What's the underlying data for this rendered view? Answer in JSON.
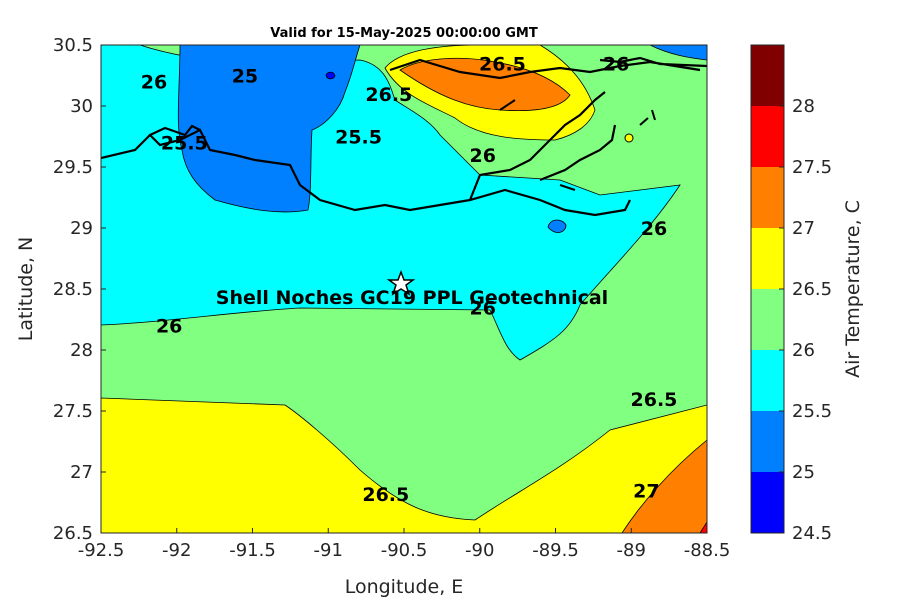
{
  "title": "Valid for 15-May-2025 00:00:00 GMT",
  "axes": {
    "xlabel": "Longitude, E",
    "ylabel": "Latitude, N",
    "xlim": [
      -92.5,
      -88.5
    ],
    "ylim": [
      26.5,
      30.5
    ],
    "xticks": [
      "-92.5",
      "-92",
      "-91.5",
      "-91",
      "-90.5",
      "-90",
      "-89.5",
      "-89",
      "-88.5"
    ],
    "yticks": [
      "30.5",
      "30",
      "29.5",
      "29",
      "28.5",
      "28",
      "27.5",
      "27",
      "26.5"
    ]
  },
  "colorbar": {
    "label": "Air Temperature, C",
    "ticks": [
      "28",
      "27.5",
      "27",
      "26.5",
      "26",
      "25.5",
      "25",
      "24.5"
    ],
    "levels": [
      {
        "from": 24.5,
        "to": 25.0,
        "color": "#0000ff"
      },
      {
        "from": 25.0,
        "to": 25.5,
        "color": "#0080ff"
      },
      {
        "from": 25.5,
        "to": 26.0,
        "color": "#00ffff"
      },
      {
        "from": 26.0,
        "to": 26.5,
        "color": "#80ff80"
      },
      {
        "from": 26.5,
        "to": 27.0,
        "color": "#ffff00"
      },
      {
        "from": 27.0,
        "to": 27.5,
        "color": "#ff8000"
      },
      {
        "from": 27.5,
        "to": 28.0,
        "color": "#ff0000"
      },
      {
        "from": 28.0,
        "to": 28.5,
        "color": "#800000"
      }
    ]
  },
  "site": {
    "label": "Shell Noches   GC19 PPL  Geotechnical",
    "lon": -90.52,
    "lat": 28.55
  },
  "contour_labels": [
    {
      "text": "26",
      "lon": -92.15,
      "lat": 30.2
    },
    {
      "text": "25",
      "lon": -91.55,
      "lat": 30.25
    },
    {
      "text": "25.5",
      "lon": -91.95,
      "lat": 29.7
    },
    {
      "text": "25.5",
      "lon": -90.8,
      "lat": 29.75
    },
    {
      "text": "26.5",
      "lon": -90.6,
      "lat": 30.1
    },
    {
      "text": "26.5",
      "lon": -89.85,
      "lat": 30.35
    },
    {
      "text": "26",
      "lon": -89.1,
      "lat": 30.35
    },
    {
      "text": "26",
      "lon": -89.98,
      "lat": 29.6
    },
    {
      "text": "26",
      "lon": -88.85,
      "lat": 29.0
    },
    {
      "text": "26",
      "lon": -92.05,
      "lat": 28.2
    },
    {
      "text": "26",
      "lon": -89.98,
      "lat": 28.35
    },
    {
      "text": "26.5",
      "lon": -90.62,
      "lat": 26.82
    },
    {
      "text": "26.5",
      "lon": -88.85,
      "lat": 27.6
    },
    {
      "text": "27",
      "lon": -88.9,
      "lat": 26.85
    }
  ]
}
